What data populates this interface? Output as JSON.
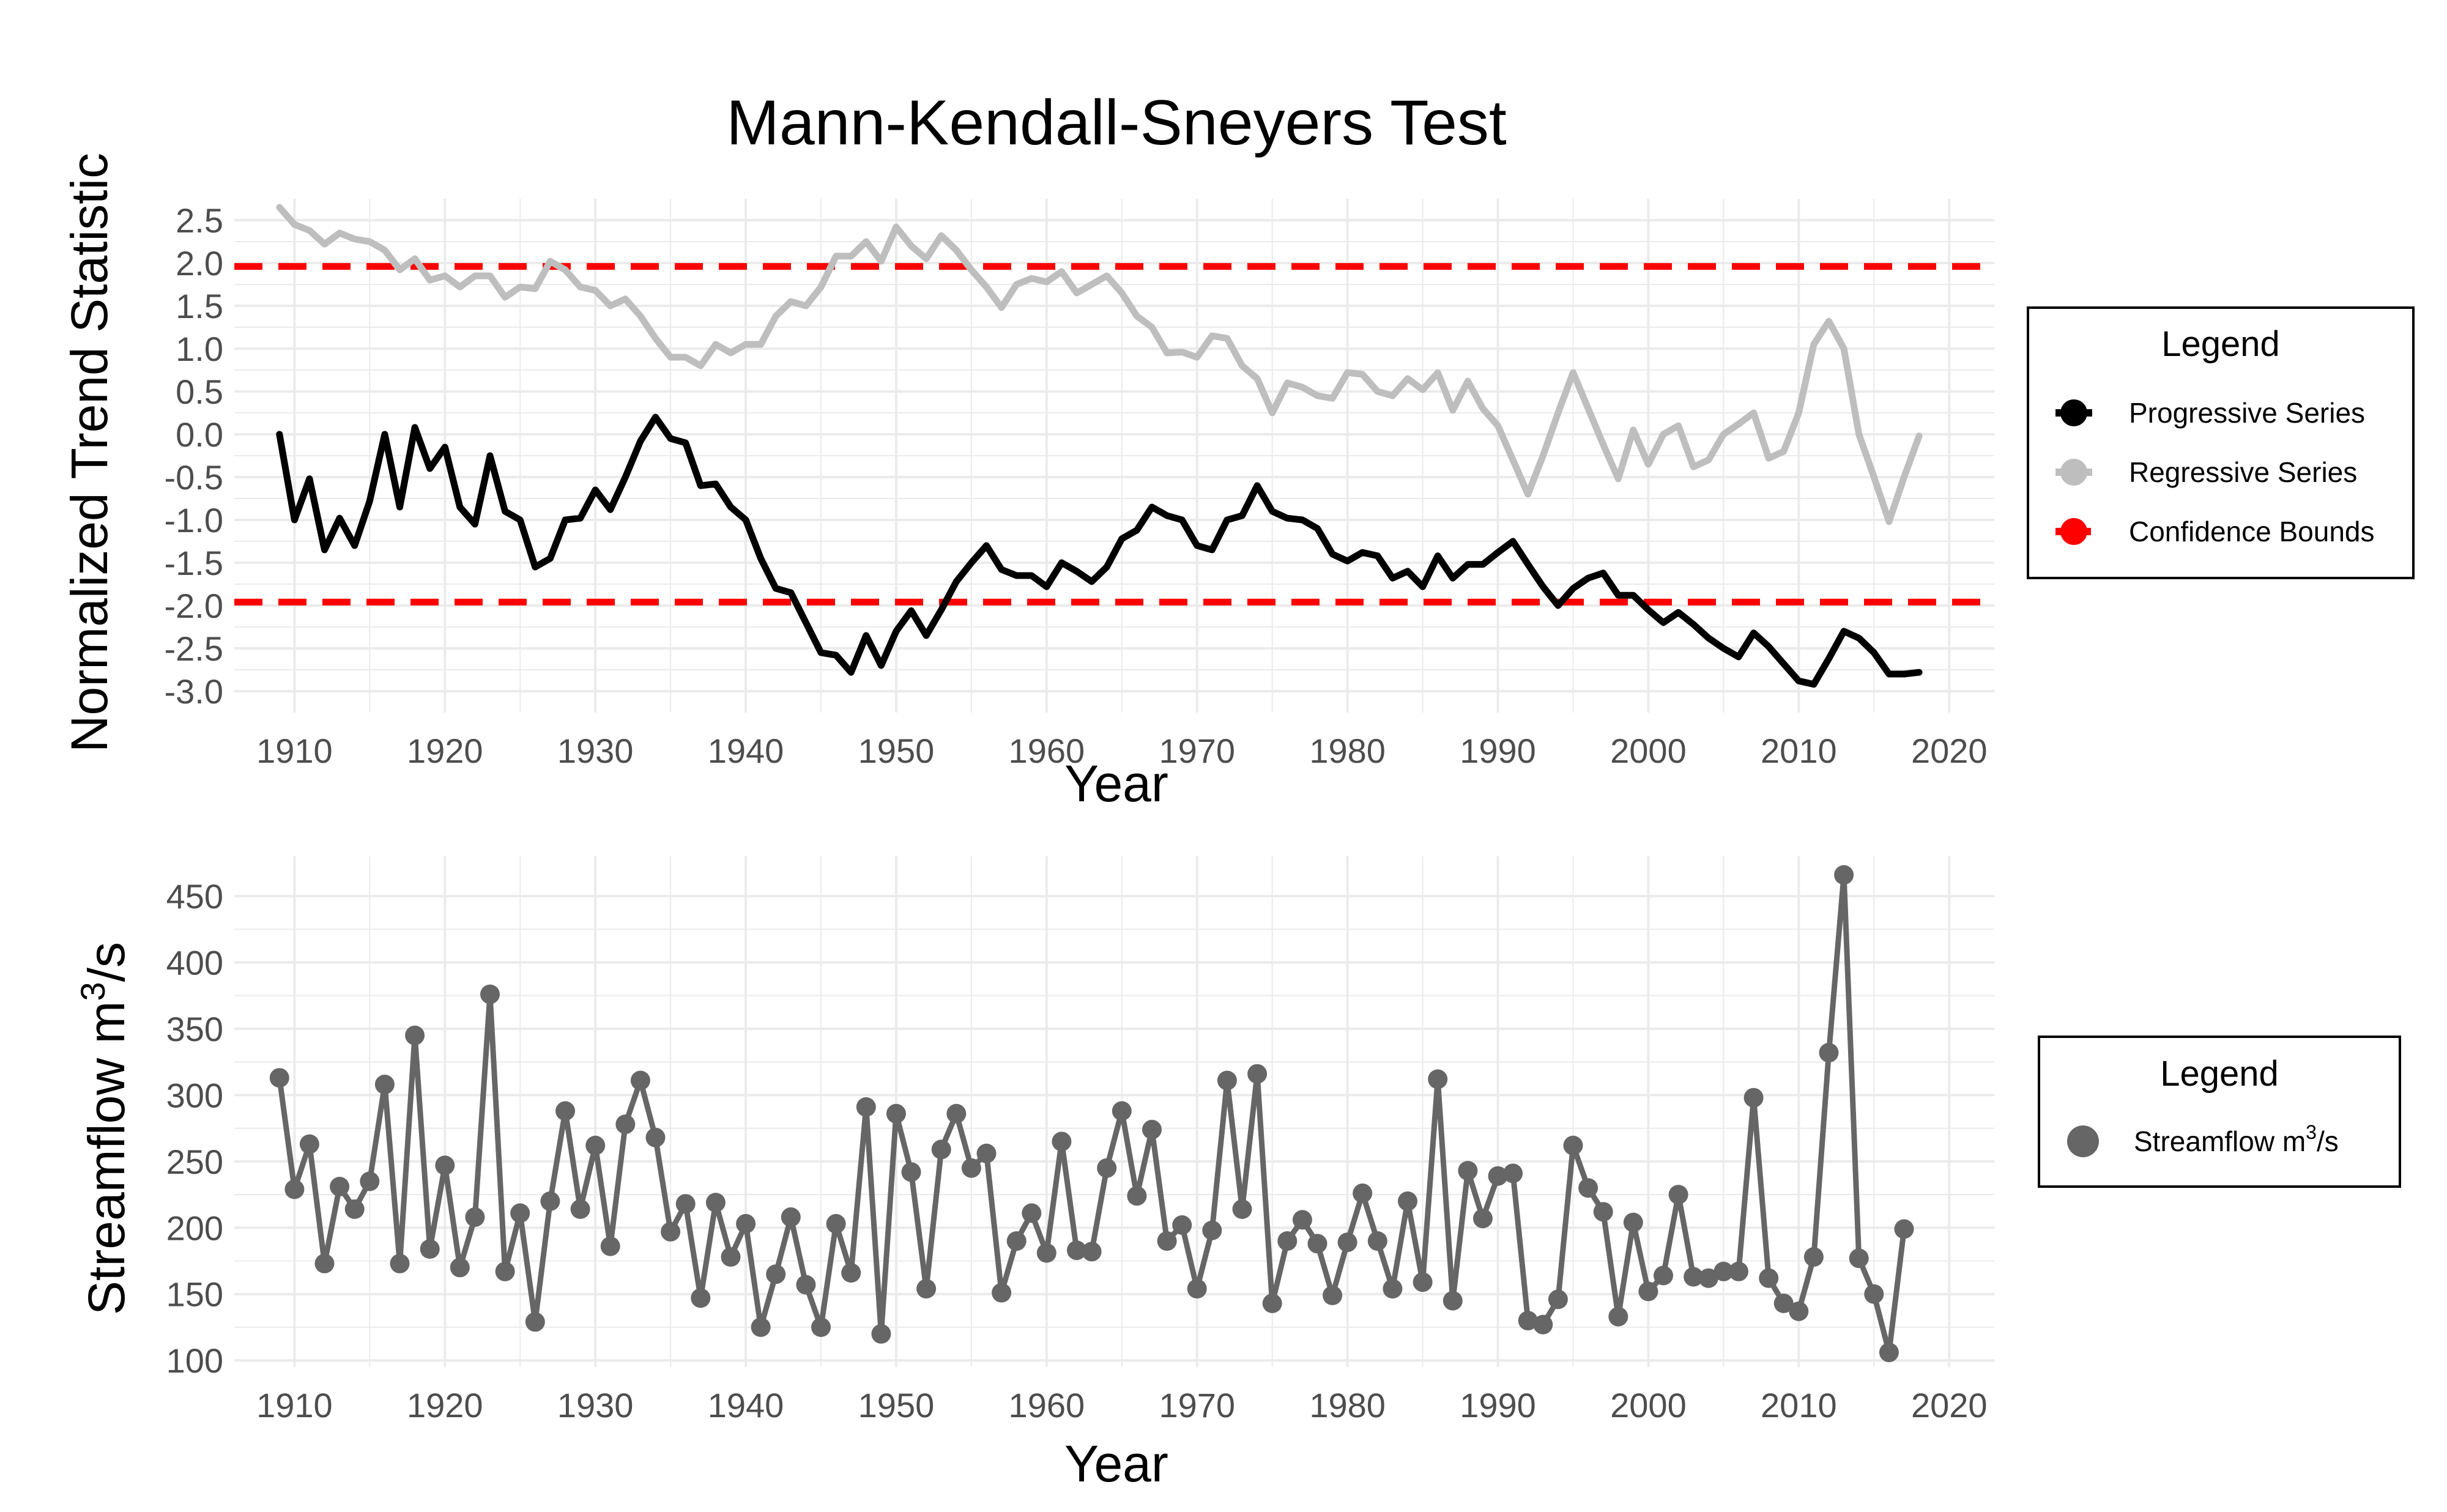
{
  "title": "Mann-Kendall-Sneyers Test",
  "colors": {
    "progressive": "#000000",
    "regressive": "#bebebe",
    "confidence": "#ff0000",
    "streamflow": "#666666",
    "grid": "#ebebeb"
  },
  "chart_data": [
    {
      "type": "line",
      "title": "Mann-Kendall-Sneyers Test",
      "xlabel": "Year",
      "ylabel": "Normalized Trend Statistic",
      "xlim": [
        1906,
        2023
      ],
      "ylim": [
        -3.25,
        2.75
      ],
      "x_ticks": [
        1910,
        1920,
        1930,
        1940,
        1950,
        1960,
        1970,
        1980,
        1990,
        2000,
        2010,
        2020
      ],
      "y_ticks": [
        -3.0,
        -2.5,
        -2.0,
        -1.5,
        -1.0,
        -0.5,
        0.0,
        0.5,
        1.0,
        1.5,
        2.0,
        2.5
      ],
      "x_tick_labels": [
        "1910",
        "1920",
        "1930",
        "1940",
        "1950",
        "1960",
        "1970",
        "1980",
        "1990",
        "2000",
        "2010",
        "2020"
      ],
      "y_tick_labels": [
        "-3.0",
        "-2.5",
        "-2.0",
        "-1.5",
        "-1.0",
        "-0.5",
        "0.0",
        "0.5",
        "1.0",
        "1.5",
        "2.0",
        "2.5"
      ],
      "grid": true,
      "legend_position": "right",
      "legend": {
        "title": "Legend",
        "entries": [
          {
            "label": "Progressive Series",
            "color": "#000000"
          },
          {
            "label": "Regressive Series",
            "color": "#bebebe"
          },
          {
            "label": "Confidence Bounds",
            "color": "#ff0000"
          }
        ]
      },
      "confidence_bounds": [
        1.96,
        -1.96
      ],
      "x_start": 1909,
      "series": [
        {
          "name": "Progressive Series",
          "values": [
            0.0,
            -1.0,
            -0.52,
            -1.35,
            -0.98,
            -1.3,
            -0.78,
            0.0,
            -0.85,
            0.08,
            -0.4,
            -0.15,
            -0.85,
            -1.05,
            -0.25,
            -0.9,
            -1.0,
            -1.55,
            -1.45,
            -1.0,
            -0.98,
            -0.65,
            -0.88,
            -0.5,
            -0.08,
            0.2,
            -0.05,
            -0.1,
            -0.6,
            -0.58,
            -0.85,
            -1.0,
            -1.45,
            -1.8,
            -1.85,
            -2.2,
            -2.55,
            -2.58,
            -2.78,
            -2.35,
            -2.7,
            -2.3,
            -2.06,
            -2.35,
            -2.05,
            -1.72,
            -1.5,
            -1.3,
            -1.58,
            -1.65,
            -1.65,
            -1.78,
            -1.5,
            -1.6,
            -1.72,
            -1.55,
            -1.22,
            -1.12,
            -0.85,
            -0.95,
            -1.0,
            -1.3,
            -1.35,
            -1.0,
            -0.95,
            -0.6,
            -0.9,
            -0.98,
            -1.0,
            -1.1,
            -1.4,
            -1.48,
            -1.38,
            -1.42,
            -1.68,
            -1.6,
            -1.78,
            -1.42,
            -1.68,
            -1.52,
            -1.52,
            -1.38,
            -1.25,
            -1.52,
            -1.78,
            -2.0,
            -1.8,
            -1.68,
            -1.62,
            -1.88,
            -1.88,
            -2.05,
            -2.2,
            -2.08,
            -2.22,
            -2.38,
            -2.5,
            -2.6,
            -2.32,
            -2.48,
            -2.68,
            -2.88,
            -2.92,
            -2.62,
            -2.3,
            -2.38,
            -2.55,
            -2.8,
            -2.8,
            -2.78
          ]
        },
        {
          "name": "Regressive Series",
          "values": [
            2.65,
            2.45,
            2.38,
            2.22,
            2.35,
            2.28,
            2.25,
            2.15,
            1.92,
            2.05,
            1.8,
            1.85,
            1.72,
            1.85,
            1.85,
            1.6,
            1.72,
            1.7,
            2.02,
            1.92,
            1.72,
            1.68,
            1.5,
            1.58,
            1.38,
            1.12,
            0.9,
            0.9,
            0.8,
            1.05,
            0.95,
            1.05,
            1.05,
            1.38,
            1.55,
            1.5,
            1.72,
            2.08,
            2.08,
            2.25,
            2.02,
            2.42,
            2.2,
            2.05,
            2.32,
            2.15,
            1.92,
            1.72,
            1.48,
            1.75,
            1.82,
            1.78,
            1.9,
            1.65,
            1.75,
            1.85,
            1.65,
            1.38,
            1.25,
            0.95,
            0.96,
            0.9,
            1.15,
            1.12,
            0.8,
            0.65,
            0.25,
            0.6,
            0.55,
            0.45,
            0.42,
            0.72,
            0.7,
            0.5,
            0.45,
            0.65,
            0.52,
            0.72,
            0.28,
            0.62,
            0.3,
            0.1,
            -0.3,
            -0.7,
            -0.25,
            0.25,
            0.72,
            0.3,
            -0.12,
            -0.52,
            0.05,
            -0.35,
            0.0,
            0.1,
            -0.38,
            -0.3,
            0.0,
            0.12,
            0.25,
            -0.28,
            -0.2,
            0.25,
            1.05,
            1.32,
            1.0,
            0.0,
            -0.5,
            -1.02,
            -0.5,
            -0.02
          ]
        }
      ]
    },
    {
      "type": "line",
      "xlabel": "Year",
      "ylabel_prefix": "Streamflow m",
      "ylabel_sup": "3",
      "ylabel_suffix": "/s",
      "xlim": [
        1906,
        2023
      ],
      "ylim": [
        95,
        480
      ],
      "x_ticks": [
        1910,
        1920,
        1930,
        1940,
        1950,
        1960,
        1970,
        1980,
        1990,
        2000,
        2010,
        2020
      ],
      "y_ticks": [
        100,
        150,
        200,
        250,
        300,
        350,
        400,
        450
      ],
      "x_tick_labels": [
        "1910",
        "1920",
        "1930",
        "1940",
        "1950",
        "1960",
        "1970",
        "1980",
        "1990",
        "2000",
        "2010",
        "2020"
      ],
      "y_tick_labels": [
        "100",
        "150",
        "200",
        "250",
        "300",
        "350",
        "400",
        "450"
      ],
      "grid": true,
      "legend_position": "right",
      "legend": {
        "title": "Legend",
        "entries": [
          {
            "label_prefix": "Streamflow m",
            "label_sup": "3",
            "label_suffix": "/s",
            "color": "#666666"
          }
        ]
      },
      "x_start": 1909,
      "series": [
        {
          "values": [
            313,
            229,
            263,
            173,
            231,
            214,
            235,
            308,
            173,
            345,
            184,
            247,
            170,
            208,
            376,
            167,
            211,
            129,
            220,
            288,
            214,
            262,
            186,
            278,
            311,
            268,
            197,
            218,
            147,
            219,
            178,
            203,
            125,
            165,
            208,
            157,
            125,
            203,
            166,
            291,
            120,
            286,
            242,
            154,
            259,
            286,
            245,
            256,
            151,
            190,
            211,
            181,
            265,
            183,
            182,
            245,
            288,
            224,
            274,
            190,
            202,
            154,
            198,
            311,
            214,
            316,
            143,
            190,
            206,
            188,
            149,
            189,
            226,
            190,
            154,
            220,
            159,
            312,
            145,
            243,
            207,
            239,
            241,
            130,
            127,
            146,
            262,
            230,
            212,
            133,
            204,
            152,
            164,
            225,
            163,
            162,
            167,
            167,
            298,
            162,
            143,
            137,
            178,
            332,
            466,
            177,
            150,
            106,
            199
          ]
        }
      ]
    }
  ]
}
